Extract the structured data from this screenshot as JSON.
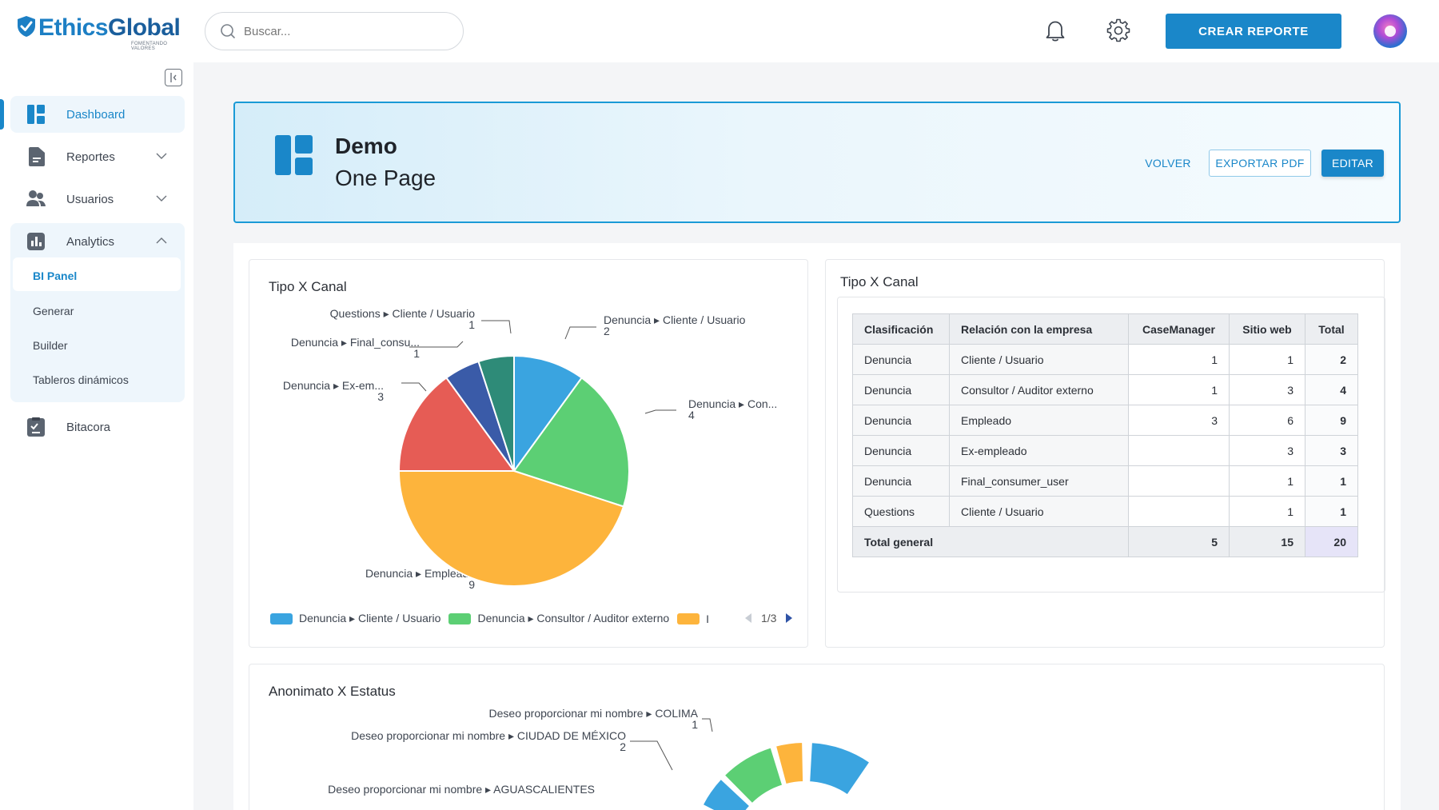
{
  "brand": {
    "name_part1": "Ethics",
    "name_part2": "Global",
    "tagline": "FOMENTANDO VALORES",
    "color": "#1d7fc4"
  },
  "topbar": {
    "search_placeholder": "Buscar...",
    "notification_icon": "bell-icon",
    "settings_icon": "gear-icon",
    "create_button": "CREAR REPORTE"
  },
  "sidebar": {
    "items": [
      {
        "label": "Dashboard",
        "icon": "dashboard-icon",
        "active": true
      },
      {
        "label": "Reportes",
        "icon": "document-icon",
        "expandable": true
      },
      {
        "label": "Usuarios",
        "icon": "users-icon",
        "expandable": true
      },
      {
        "label": "Analytics",
        "icon": "analytics-icon",
        "expanded": true
      },
      {
        "label": "Bitacora",
        "icon": "logbook-icon"
      }
    ],
    "analytics_sub": [
      "BI Panel",
      "Generar",
      "Builder",
      "Tableros dinámicos"
    ],
    "active_sub": "BI Panel"
  },
  "header": {
    "title": "Demo",
    "subtitle": "One Page",
    "volver": "VOLVER",
    "exportar": "EXPORTAR PDF",
    "editar": "EDITAR"
  },
  "pie_card": {
    "title": "Tipo X Canal",
    "labels": [
      {
        "text": "Denuncia ▸ Cliente / Usuario",
        "value": "2"
      },
      {
        "text": "Denuncia ▸ Con...",
        "value": "4"
      },
      {
        "text": "Denuncia ▸ Empleado",
        "value": "9"
      },
      {
        "text": "Denuncia ▸ Ex-em...",
        "value": "3"
      },
      {
        "text": "Denuncia ▸ Final_consu...",
        "value": "1"
      },
      {
        "text": "Questions ▸ Cliente / Usuario",
        "value": "1"
      }
    ],
    "legend": [
      {
        "text": "Denuncia ▸ Cliente / Usuario",
        "color": "#3aa4e0"
      },
      {
        "text": "Denuncia ▸ Consultor / Auditor externo",
        "color": "#5ccf74"
      },
      {
        "text": "I",
        "color": "#fdb43c"
      }
    ],
    "pager": "1/3"
  },
  "chart_data": [
    {
      "type": "pie",
      "title": "Tipo X Canal",
      "categories": [
        "Denuncia ▸ Cliente / Usuario",
        "Denuncia ▸ Consultor / Auditor externo",
        "Denuncia ▸ Empleado",
        "Denuncia ▸ Ex-empleado",
        "Denuncia ▸ Final_consumer_user",
        "Questions ▸ Cliente / Usuario"
      ],
      "values": [
        2,
        4,
        9,
        3,
        1,
        1
      ],
      "colors": [
        "#3aa4e0",
        "#5ccf74",
        "#fdb43c",
        "#e65c55",
        "#3a5ba8",
        "#2e8b78"
      ],
      "legend": "bottom"
    },
    {
      "type": "pie",
      "title": "Anonimato X Estatus",
      "categories": [
        "Deseo proporcionar mi nombre ▸ COLIMA",
        "Deseo proporcionar mi nombre ▸ CIUDAD DE MÉXICO",
        "Deseo proporcionar mi nombre ▸ AGUASCALIENTES"
      ],
      "values": [
        1,
        2,
        null
      ],
      "visible_slice_colors": [
        "#fdb43c",
        "#5ccf74",
        "#3aa4e0"
      ]
    }
  ],
  "table_card": {
    "title": "Tipo X Canal",
    "headers": [
      "Clasificación",
      "Relación con la empresa",
      "CaseManager",
      "Sitio web",
      "Total"
    ],
    "rows": [
      [
        "Denuncia",
        "Cliente / Usuario",
        "1",
        "1",
        "2"
      ],
      [
        "Denuncia",
        "Consultor / Auditor externo",
        "1",
        "3",
        "4"
      ],
      [
        "Denuncia",
        "Empleado",
        "3",
        "6",
        "9"
      ],
      [
        "Denuncia",
        "Ex-empleado",
        "",
        "3",
        "3"
      ],
      [
        "Denuncia",
        "Final_consumer_user",
        "",
        "1",
        "1"
      ],
      [
        "Questions",
        "Cliente / Usuario",
        "",
        "1",
        "1"
      ]
    ],
    "total_row": [
      "Total general",
      "5",
      "15",
      "20"
    ]
  },
  "donut_card": {
    "title": "Anonimato X Estatus",
    "labels": [
      {
        "text": "Deseo proporcionar mi nombre ▸ COLIMA",
        "value": "1"
      },
      {
        "text": "Deseo proporcionar mi nombre ▸ CIUDAD DE MÉXICO",
        "value": "2"
      },
      {
        "text": "Deseo proporcionar mi nombre ▸ AGUASCALIENTES",
        "value": ""
      }
    ]
  }
}
